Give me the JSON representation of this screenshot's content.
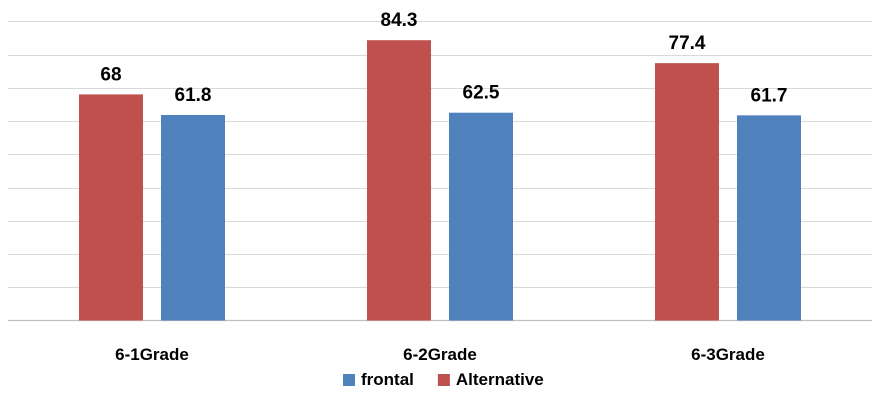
{
  "chart_data": {
    "type": "bar",
    "categories": [
      "6-1Grade",
      "6-2Grade",
      "6-3Grade"
    ],
    "series": [
      {
        "name": "Alternative",
        "values": [
          68,
          84.3,
          77.4
        ],
        "color": "#c0504d"
      },
      {
        "name": "frontal",
        "values": [
          61.8,
          62.5,
          61.7
        ],
        "color": "#4f81bd"
      }
    ],
    "value_labels": {
      "Alternative": [
        "68",
        "84.3",
        "77.4"
      ],
      "frontal": [
        "61.8",
        "62.5",
        "61.7"
      ]
    },
    "legend_order": [
      "frontal",
      "Alternative"
    ],
    "legend_position": "bottom",
    "ylim": [
      0,
      90
    ],
    "grid": true
  }
}
